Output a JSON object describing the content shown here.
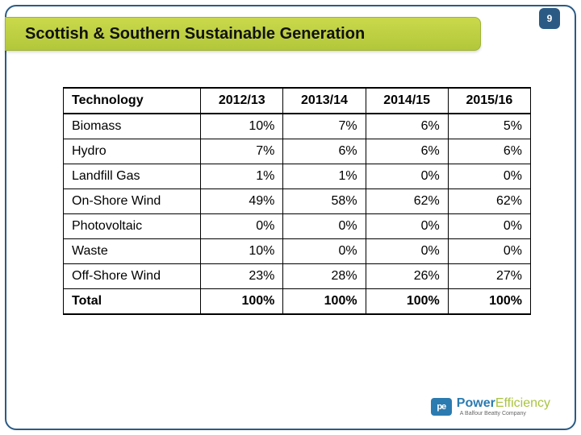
{
  "page_number": "9",
  "title": "Scottish & Southern Sustainable Generation",
  "table": {
    "type": "table",
    "header_fontweight": "bold",
    "border_color": "#000000",
    "cell_fontsize": 16,
    "columns": [
      "Technology",
      "2012/13",
      "2013/14",
      "2014/15",
      "2015/16"
    ],
    "rows": [
      [
        "Biomass",
        "10%",
        "7%",
        "6%",
        "5%"
      ],
      [
        "Hydro",
        "7%",
        "6%",
        "6%",
        "6%"
      ],
      [
        "Landfill Gas",
        "1%",
        "1%",
        "0%",
        "0%"
      ],
      [
        "On-Shore Wind",
        "49%",
        "58%",
        "62%",
        "62%"
      ],
      [
        "Photovoltaic",
        "0%",
        "0%",
        "0%",
        "0%"
      ],
      [
        "Waste",
        "10%",
        "0%",
        "0%",
        "0%"
      ],
      [
        "Off-Shore Wind",
        "23%",
        "28%",
        "26%",
        "27%"
      ]
    ],
    "total_row": [
      "Total",
      "100%",
      "100%",
      "100%",
      "100%"
    ]
  },
  "logo": {
    "badge_text": "pe",
    "brand_part1": "Power",
    "brand_part2": "Efficiency",
    "subline": "A Balfour Beatty Company",
    "badge_bg": "#2b7bb0",
    "part1_color": "#2b7bb0",
    "part2_color": "#a9c43f"
  },
  "colors": {
    "frame_border": "#2b5b84",
    "title_bar_top": "#c9d94a",
    "title_bar_bottom": "#b3c73b",
    "title_text": "#111111",
    "background": "#ffffff"
  }
}
